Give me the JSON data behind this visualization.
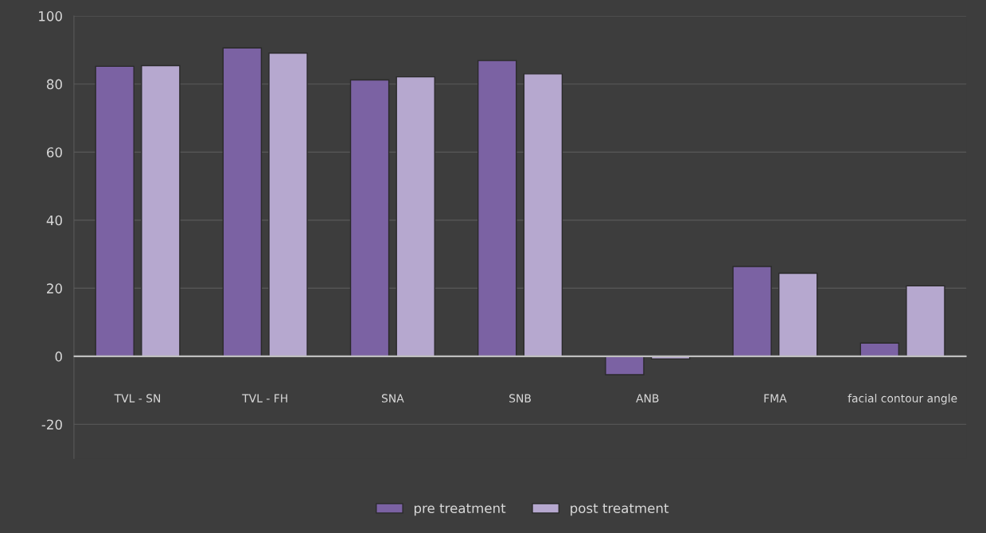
{
  "chart_data": {
    "type": "bar",
    "categories": [
      "TVL - SN",
      "TVL - FH",
      "SNA",
      "SNB",
      "ANB",
      "FMA",
      "facial contour angle"
    ],
    "series": [
      {
        "name": "pre treatment",
        "color": "#7b62a3",
        "values": [
          85.2,
          90.6,
          81.2,
          86.9,
          -5.4,
          26.4,
          3.9
        ]
      },
      {
        "name": "post treatment",
        "color": "#b6a8cf",
        "values": [
          85.4,
          89.1,
          82.1,
          83.0,
          -0.8,
          24.4,
          20.7
        ]
      }
    ],
    "ylim": [
      -30,
      100
    ],
    "yticks": [
      -20,
      0,
      20,
      40,
      60,
      80,
      100
    ],
    "grid": "y",
    "legend": "bottom"
  }
}
